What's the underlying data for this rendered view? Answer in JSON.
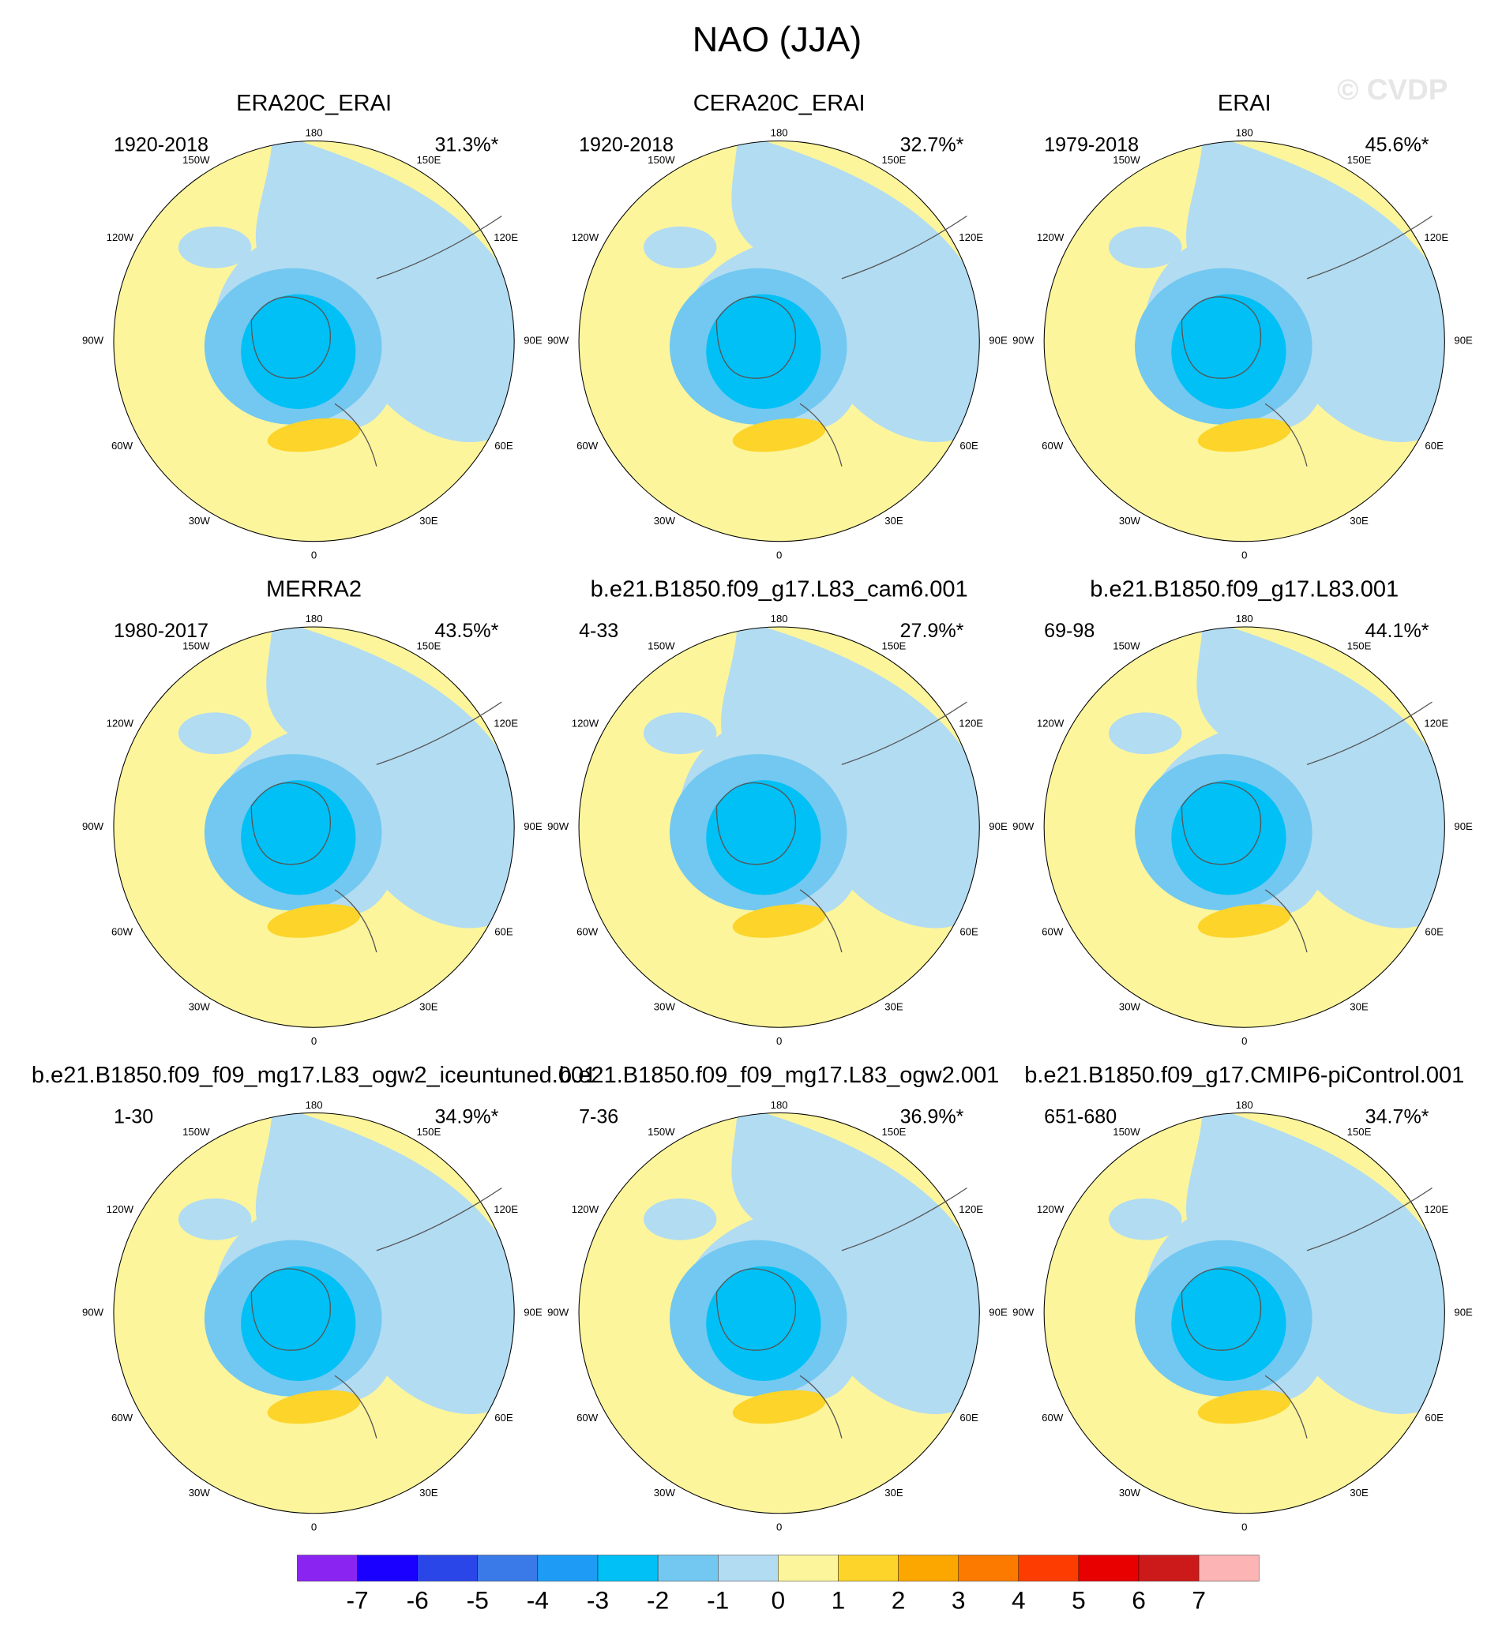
{
  "title": "NAO (JJA)",
  "watermark": "© CVDP",
  "lon_labels": [
    "180",
    "150W",
    "150E",
    "120W",
    "120E",
    "90W",
    "90E",
    "60W",
    "60E",
    "30W",
    "30E",
    "0"
  ],
  "panels": [
    {
      "title": "ERA20C_ERAI",
      "years": "1920-2018",
      "pct": "31.3%*"
    },
    {
      "title": "CERA20C_ERAI",
      "years": "1920-2018",
      "pct": "32.7%*"
    },
    {
      "title": "ERAI",
      "years": "1979-2018",
      "pct": "45.6%*"
    },
    {
      "title": "MERRA2",
      "years": "1980-2017",
      "pct": "43.5%*"
    },
    {
      "title": "b.e21.B1850.f09_g17.L83_cam6.001",
      "years": "4-33",
      "pct": "27.9%*"
    },
    {
      "title": "b.e21.B1850.f09_g17.L83.001",
      "years": "69-98",
      "pct": "44.1%*"
    },
    {
      "title": "b.e21.B1850.f09_f09_mg17.L83_ogw2_iceuntuned.001",
      "years": "1-30",
      "pct": "34.9%*"
    },
    {
      "title": "b.e21.B1850.f09_f09_mg17.L83_ogw2.001",
      "years": "7-36",
      "pct": "36.9%*"
    },
    {
      "title": "b.e21.B1850.f09_g17.CMIP6-piControl.001",
      "years": "651-680",
      "pct": "34.7%*"
    }
  ],
  "colorbar": {
    "levels": [
      -7,
      -6,
      -5,
      -4,
      -3,
      -2,
      -1,
      0,
      1,
      2,
      3,
      4,
      5,
      6,
      7
    ],
    "colors": [
      "#8a24f0",
      "#1a00ff",
      "#2a46e8",
      "#3a7ae8",
      "#1e9cf5",
      "#00c0f5",
      "#72c8f0",
      "#b2dcf2",
      "#fcf59c",
      "#fcd42a",
      "#fca600",
      "#fc7a00",
      "#fc3c00",
      "#e80000",
      "#cc1a1a",
      "#fcb4b4"
    ]
  }
}
